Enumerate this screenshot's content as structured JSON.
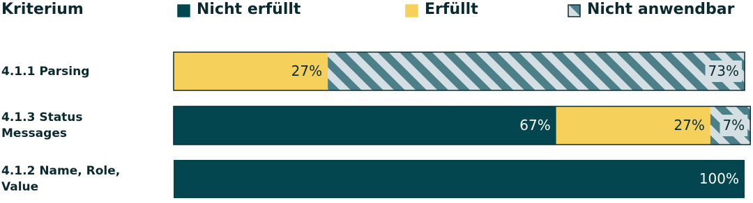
{
  "chart_data": {
    "type": "stacked-bar",
    "header": "Kriterium",
    "categories": [
      "4.1.1 Parsing",
      "4.1.3 Status Messages",
      "4.1.2 Name, Role, Value"
    ],
    "series": [
      {
        "name": "Nicht erfüllt",
        "color": "#034650",
        "values": [
          0,
          67,
          100
        ],
        "value_labels": [
          null,
          "67%",
          "100%"
        ]
      },
      {
        "name": "Erfüllt",
        "color": "#f5d05a",
        "values": [
          27,
          27,
          0
        ],
        "value_labels": [
          "27%",
          "27%",
          null
        ]
      },
      {
        "name": "Nicht anwendbar",
        "color": "#4c7f88",
        "pattern": "striped",
        "values": [
          73,
          7,
          0
        ],
        "value_labels": [
          "73%",
          "7%",
          null
        ]
      }
    ],
    "xlim": [
      0,
      100
    ]
  }
}
